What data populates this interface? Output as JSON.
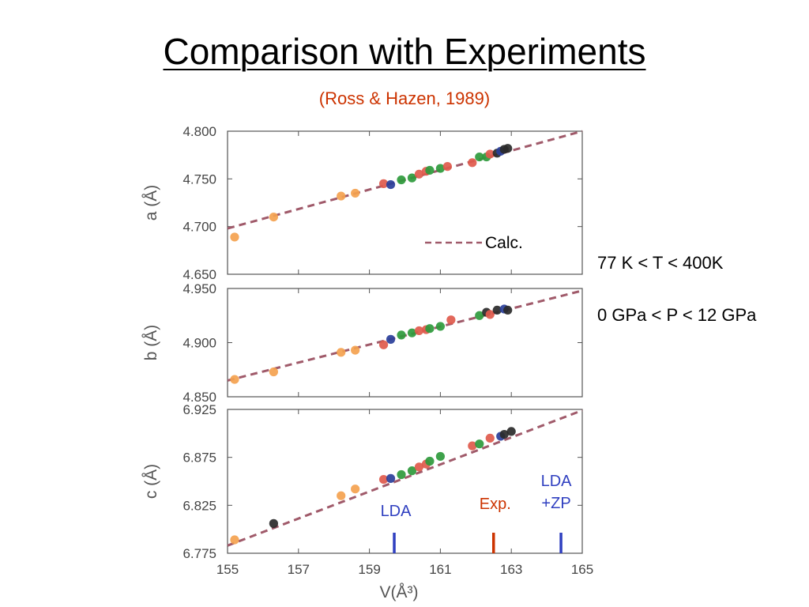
{
  "page": {
    "title": "Comparison with Experiments",
    "source": "(Ross & Hazen, 1989)",
    "conditions": [
      "77 K < T < 400K",
      "0 GPa < P < 12 GPa"
    ]
  },
  "chart_data": {
    "type": "scatter",
    "xlabel": "V(Å³)",
    "xlim": [
      155,
      165
    ],
    "xticks": [
      "155",
      "157",
      "159",
      "161",
      "163",
      "165"
    ],
    "legend": {
      "label": "Calc.",
      "placement": "center-right",
      "color": "#a05a6a"
    },
    "colors": {
      "orange": "#f4a24f",
      "red": "#e05a4c",
      "green": "#2e9a3c",
      "blue": "#2a3f9a",
      "black": "#2a2a2a",
      "calc": "#a05a6a",
      "lda": "#2f3fc0",
      "exp": "#cc3300"
    },
    "panels": [
      {
        "ylabel": "a (Å)",
        "ylim": [
          4.65,
          4.8
        ],
        "yticks": [
          "4.800",
          "4.750",
          "4.700",
          "4.650"
        ],
        "calc_line": [
          [
            155,
            4.698
          ],
          [
            165,
            4.8
          ]
        ],
        "points": [
          {
            "x": 155.2,
            "y": 4.689,
            "c": "orange"
          },
          {
            "x": 156.3,
            "y": 4.71,
            "c": "orange"
          },
          {
            "x": 158.2,
            "y": 4.732,
            "c": "orange"
          },
          {
            "x": 158.6,
            "y": 4.735,
            "c": "orange"
          },
          {
            "x": 159.4,
            "y": 4.745,
            "c": "red"
          },
          {
            "x": 159.6,
            "y": 4.744,
            "c": "blue"
          },
          {
            "x": 159.9,
            "y": 4.749,
            "c": "green"
          },
          {
            "x": 160.2,
            "y": 4.751,
            "c": "green"
          },
          {
            "x": 160.4,
            "y": 4.755,
            "c": "red"
          },
          {
            "x": 160.6,
            "y": 4.758,
            "c": "red"
          },
          {
            "x": 160.7,
            "y": 4.759,
            "c": "green"
          },
          {
            "x": 161.0,
            "y": 4.761,
            "c": "green"
          },
          {
            "x": 161.2,
            "y": 4.763,
            "c": "red"
          },
          {
            "x": 161.9,
            "y": 4.767,
            "c": "red"
          },
          {
            "x": 162.1,
            "y": 4.773,
            "c": "green"
          },
          {
            "x": 162.3,
            "y": 4.773,
            "c": "green"
          },
          {
            "x": 162.4,
            "y": 4.776,
            "c": "red"
          },
          {
            "x": 162.6,
            "y": 4.777,
            "c": "black"
          },
          {
            "x": 162.7,
            "y": 4.779,
            "c": "blue"
          },
          {
            "x": 162.8,
            "y": 4.781,
            "c": "black"
          },
          {
            "x": 162.9,
            "y": 4.782,
            "c": "black"
          }
        ]
      },
      {
        "ylabel": "b (Å)",
        "ylim": [
          4.85,
          4.95
        ],
        "yticks": [
          "4.950",
          "4.900",
          "4.850"
        ],
        "calc_line": [
          [
            155,
            4.865
          ],
          [
            165,
            4.948
          ]
        ],
        "points": [
          {
            "x": 155.2,
            "y": 4.866,
            "c": "orange"
          },
          {
            "x": 156.3,
            "y": 4.873,
            "c": "orange"
          },
          {
            "x": 158.2,
            "y": 4.891,
            "c": "orange"
          },
          {
            "x": 158.6,
            "y": 4.893,
            "c": "orange"
          },
          {
            "x": 159.4,
            "y": 4.898,
            "c": "red"
          },
          {
            "x": 159.6,
            "y": 4.903,
            "c": "blue"
          },
          {
            "x": 159.9,
            "y": 4.907,
            "c": "green"
          },
          {
            "x": 160.2,
            "y": 4.909,
            "c": "green"
          },
          {
            "x": 160.4,
            "y": 4.911,
            "c": "red"
          },
          {
            "x": 160.6,
            "y": 4.912,
            "c": "red"
          },
          {
            "x": 160.7,
            "y": 4.913,
            "c": "green"
          },
          {
            "x": 161.0,
            "y": 4.915,
            "c": "green"
          },
          {
            "x": 161.3,
            "y": 4.921,
            "c": "red"
          },
          {
            "x": 162.1,
            "y": 4.925,
            "c": "green"
          },
          {
            "x": 162.3,
            "y": 4.928,
            "c": "black"
          },
          {
            "x": 162.4,
            "y": 4.926,
            "c": "red"
          },
          {
            "x": 162.6,
            "y": 4.93,
            "c": "black"
          },
          {
            "x": 162.8,
            "y": 4.931,
            "c": "blue"
          },
          {
            "x": 162.9,
            "y": 4.93,
            "c": "black"
          }
        ]
      },
      {
        "ylabel": "c (Å)",
        "ylim": [
          6.775,
          6.925
        ],
        "yticks": [
          "6.925",
          "6.875",
          "6.825",
          "6.775"
        ],
        "calc_line": [
          [
            155,
            6.783
          ],
          [
            165,
            6.924
          ]
        ],
        "points": [
          {
            "x": 155.2,
            "y": 6.789,
            "c": "orange"
          },
          {
            "x": 156.3,
            "y": 6.806,
            "c": "black"
          },
          {
            "x": 158.2,
            "y": 6.835,
            "c": "orange"
          },
          {
            "x": 158.6,
            "y": 6.842,
            "c": "orange"
          },
          {
            "x": 159.4,
            "y": 6.852,
            "c": "red"
          },
          {
            "x": 159.6,
            "y": 6.853,
            "c": "blue"
          },
          {
            "x": 159.9,
            "y": 6.857,
            "c": "green"
          },
          {
            "x": 160.2,
            "y": 6.861,
            "c": "green"
          },
          {
            "x": 160.4,
            "y": 6.865,
            "c": "red"
          },
          {
            "x": 160.6,
            "y": 6.868,
            "c": "red"
          },
          {
            "x": 160.7,
            "y": 6.871,
            "c": "green"
          },
          {
            "x": 161.0,
            "y": 6.876,
            "c": "green"
          },
          {
            "x": 161.9,
            "y": 6.887,
            "c": "red"
          },
          {
            "x": 162.1,
            "y": 6.889,
            "c": "green"
          },
          {
            "x": 162.4,
            "y": 6.895,
            "c": "red"
          },
          {
            "x": 162.7,
            "y": 6.897,
            "c": "blue"
          },
          {
            "x": 162.8,
            "y": 6.899,
            "c": "black"
          },
          {
            "x": 163.0,
            "y": 6.902,
            "c": "black"
          }
        ],
        "markers": [
          {
            "label": "LDA",
            "x": 159.7,
            "c": "lda"
          },
          {
            "label": "Exp.",
            "x": 162.5,
            "c": "exp"
          },
          {
            "label": "LDA\n+ZP",
            "x": 164.4,
            "c": "lda"
          }
        ]
      }
    ]
  }
}
